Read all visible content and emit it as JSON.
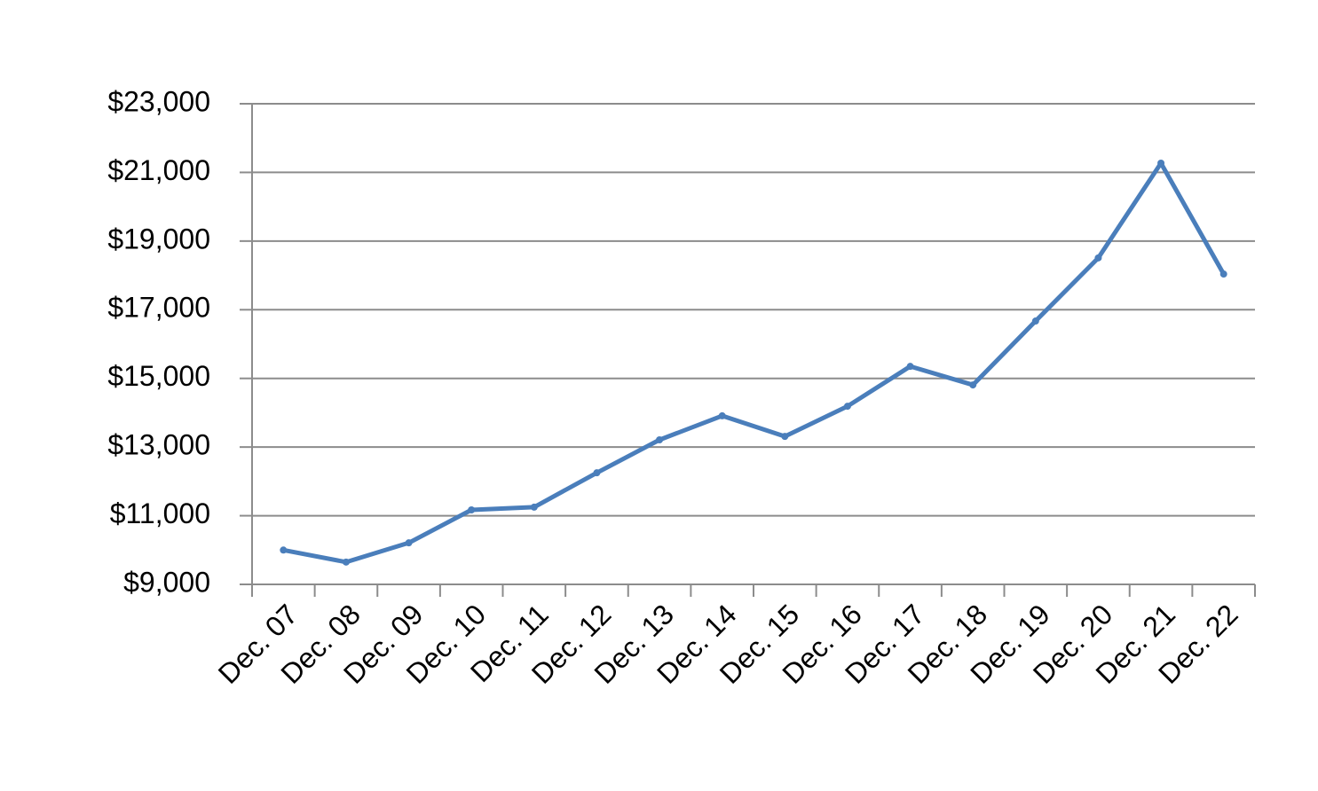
{
  "chart_data": {
    "type": "line",
    "categories": [
      "Dec. 07",
      "Dec. 08",
      "Dec. 09",
      "Dec. 10",
      "Dec. 11",
      "Dec. 12",
      "Dec. 13",
      "Dec. 14",
      "Dec. 15",
      "Dec. 16",
      "Dec. 17",
      "Dec. 18",
      "Dec. 19",
      "Dec. 20",
      "Dec. 21",
      "Dec. 22"
    ],
    "values": [
      10000,
      9650,
      10210,
      11170,
      11250,
      12250,
      13210,
      13910,
      13310,
      14190,
      15350,
      14810,
      16670,
      18510,
      21270,
      18040
    ],
    "color": "#4a7ebb",
    "ylim": [
      9000,
      23000
    ],
    "yticks": [
      {
        "value": 9000,
        "label": "$9,000"
      },
      {
        "value": 11000,
        "label": "$11,000"
      },
      {
        "value": 13000,
        "label": "$13,000"
      },
      {
        "value": 15000,
        "label": "$15,000"
      },
      {
        "value": 17000,
        "label": "$17,000"
      },
      {
        "value": 19000,
        "label": "$19,000"
      },
      {
        "value": 21000,
        "label": "$21,000"
      },
      {
        "value": 23000,
        "label": "$23,000"
      }
    ],
    "grid": true
  }
}
